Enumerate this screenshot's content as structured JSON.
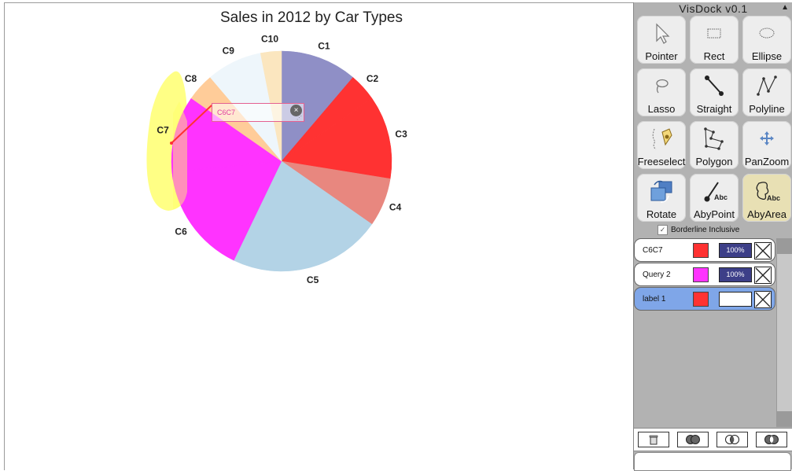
{
  "chart_data": {
    "type": "pie",
    "title": "Sales in 2012 by Car Types",
    "categories": [
      "C1",
      "C2",
      "C3",
      "C4",
      "C5",
      "C6",
      "C7",
      "C8",
      "C9",
      "C10"
    ],
    "values": [
      11,
      4,
      12,
      7,
      22,
      16,
      11,
      4,
      8,
      3
    ],
    "colors": [
      "#8f8fc6",
      "#ff3232",
      "#ff3232",
      "#e8877f",
      "#b3d3e6",
      "#ff33ff",
      "#ff33ff",
      "#ffcc99",
      "#eef6fb",
      "#fbe6bf"
    ]
  },
  "annotation": {
    "label": "C6C7",
    "close_icon": "close-icon",
    "grip_icon": "resize-grip-icon",
    "lasso_color": "#ffff66"
  },
  "dock": {
    "title": "VisDock v0.1",
    "collapse_glyph": "▲",
    "tools": [
      {
        "id": "pointer",
        "label": "Pointer",
        "icon": "pointer-icon",
        "active": false
      },
      {
        "id": "rect",
        "label": "Rect",
        "icon": "rectangle-icon",
        "active": false
      },
      {
        "id": "ellipse",
        "label": "Ellipse",
        "icon": "ellipse-icon",
        "active": false
      },
      {
        "id": "lasso",
        "label": "Lasso",
        "icon": "lasso-icon",
        "active": false
      },
      {
        "id": "straight",
        "label": "Straight",
        "icon": "straight-line-icon",
        "active": false
      },
      {
        "id": "polyline",
        "label": "Polyline",
        "icon": "polyline-icon",
        "active": false
      },
      {
        "id": "freeselect",
        "label": "Freeselect",
        "icon": "freeselect-icon",
        "active": false
      },
      {
        "id": "polygon",
        "label": "Polygon",
        "icon": "polygon-icon",
        "active": false
      },
      {
        "id": "panzoom",
        "label": "PanZoom",
        "icon": "pan-zoom-icon",
        "active": false
      },
      {
        "id": "rotate",
        "label": "Rotate",
        "icon": "rotate-icon",
        "active": false
      },
      {
        "id": "abypoint",
        "label": "AbyPoint",
        "icon": "annotate-by-point-icon",
        "active": false
      },
      {
        "id": "abyarea",
        "label": "AbyArea",
        "icon": "annotate-by-area-icon",
        "active": true
      }
    ],
    "borderline_label": "Borderline Inclusive",
    "borderline_checked": "✓",
    "queries": [
      {
        "name": "C6C7",
        "color": "#ff3232",
        "opacity": "100%",
        "selected": false
      },
      {
        "name": "Query 2",
        "color": "#ff33ff",
        "opacity": "100%",
        "selected": false
      },
      {
        "name": "label 1",
        "color": "#ff3232",
        "opacity": "",
        "selected": true
      }
    ],
    "operations": [
      {
        "id": "trash",
        "icon": "trash-icon"
      },
      {
        "id": "intersect",
        "icon": "intersect-icon"
      },
      {
        "id": "union",
        "icon": "union-icon"
      },
      {
        "id": "xor",
        "icon": "xor-icon"
      }
    ]
  }
}
